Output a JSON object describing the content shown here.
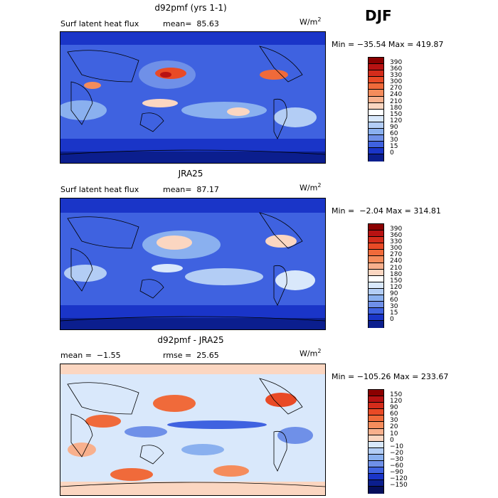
{
  "season": "DJF",
  "units_base": "W/m",
  "units_exp": "2",
  "panels": [
    {
      "title": "d92pmf (yrs 1-1)",
      "left_label": "Surf latent heat flux",
      "right_label": "mean=  85.63",
      "minmax": "Min = −35.54 Max = 419.87",
      "levels": [
        "390",
        "360",
        "330",
        "300",
        "270",
        "240",
        "210",
        "180",
        "150",
        "120",
        "90",
        "60",
        "30",
        "15",
        "0"
      ],
      "colors": [
        "#8b0000",
        "#b81212",
        "#d42c1b",
        "#e94a26",
        "#f06a3a",
        "#f58c5c",
        "#f8b08d",
        "#fbd6c1",
        "#ffffff",
        "#d9e8fb",
        "#b3cdf5",
        "#8ab0ef",
        "#6f90e8",
        "#3f62e0",
        "#1a35c8",
        "#0b1e8e"
      ]
    },
    {
      "title": "JRA25",
      "left_label": "Surf latent heat flux",
      "right_label": "mean=  87.17",
      "minmax": "Min =  −2.04 Max = 314.81",
      "levels": [
        "390",
        "360",
        "330",
        "300",
        "270",
        "240",
        "210",
        "180",
        "150",
        "120",
        "90",
        "60",
        "30",
        "15",
        "0"
      ],
      "colors": [
        "#8b0000",
        "#b81212",
        "#d42c1b",
        "#e94a26",
        "#f06a3a",
        "#f58c5c",
        "#f8b08d",
        "#fbd6c1",
        "#ffffff",
        "#d9e8fb",
        "#b3cdf5",
        "#8ab0ef",
        "#6f90e8",
        "#3f62e0",
        "#1a35c8",
        "#0b1e8e"
      ]
    },
    {
      "title": "d92pmf - JRA25",
      "left_label": "mean =  −1.55",
      "right_label": "rmse =  25.65",
      "minmax": "Min = −105.26 Max = 233.67",
      "levels": [
        "150",
        "120",
        "90",
        "60",
        "30",
        "20",
        "10",
        "0",
        "−10",
        "−20",
        "−30",
        "−60",
        "−90",
        "−120",
        "−150"
      ],
      "colors": [
        "#8b0000",
        "#b81212",
        "#d42c1b",
        "#e94a26",
        "#f06a3a",
        "#f58c5c",
        "#f8b08d",
        "#fbd6c1",
        "#d9e8fb",
        "#b3cdf5",
        "#8ab0ef",
        "#6f90e8",
        "#3f62e0",
        "#1a35c8",
        "#0b1e8e",
        "#060f5c"
      ]
    }
  ]
}
